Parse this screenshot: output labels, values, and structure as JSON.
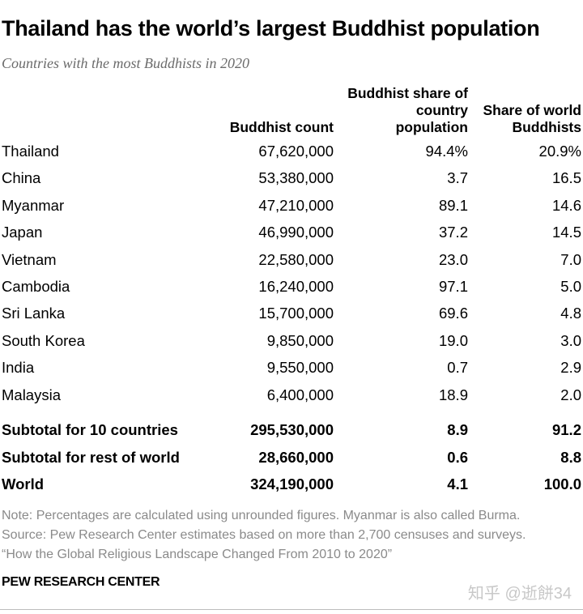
{
  "title": "Thailand has the world’s largest Buddhist population",
  "subtitle": "Countries with the most Buddhists in 2020",
  "chart_data": {
    "type": "table",
    "columns": {
      "country": "",
      "buddhist_count": "Buddhist count",
      "share_country_line1": "Buddhist share of",
      "share_country_line2": "country",
      "share_country_line3": "population",
      "share_world_line1": "Share of world",
      "share_world_line2": "Buddhists"
    },
    "rows": [
      {
        "country": "Thailand",
        "count": "67,620,000",
        "share_country": "94.4%",
        "share_world": "20.9%"
      },
      {
        "country": "China",
        "count": "53,380,000",
        "share_country": "3.7",
        "share_world": "16.5"
      },
      {
        "country": "Myanmar",
        "count": "47,210,000",
        "share_country": "89.1",
        "share_world": "14.6"
      },
      {
        "country": "Japan",
        "count": "46,990,000",
        "share_country": "37.2",
        "share_world": "14.5"
      },
      {
        "country": "Vietnam",
        "count": "22,580,000",
        "share_country": "23.0",
        "share_world": "7.0"
      },
      {
        "country": "Cambodia",
        "count": "16,240,000",
        "share_country": "97.1",
        "share_world": "5.0"
      },
      {
        "country": "Sri Lanka",
        "count": "15,700,000",
        "share_country": "69.6",
        "share_world": "4.8"
      },
      {
        "country": "South Korea",
        "count": "9,850,000",
        "share_country": "19.0",
        "share_world": "3.0"
      },
      {
        "country": "India",
        "count": "9,550,000",
        "share_country": "0.7",
        "share_world": "2.9"
      },
      {
        "country": "Malaysia",
        "count": "6,400,000",
        "share_country": "18.9",
        "share_world": "2.0"
      }
    ],
    "totals": [
      {
        "country": "Subtotal for 10 countries",
        "count": "295,530,000",
        "share_country": "8.9",
        "share_world": "91.2"
      },
      {
        "country": "Subtotal for rest of world",
        "count": "28,660,000",
        "share_country": "0.6",
        "share_world": "8.8"
      },
      {
        "country": "World",
        "count": "324,190,000",
        "share_country": "4.1",
        "share_world": "100.0"
      }
    ]
  },
  "notes": {
    "note": "Note: Percentages are calculated using unrounded figures. Myanmar is also called Burma.",
    "source": "Source: Pew Research Center estimates based on more than 2,700 censuses and surveys.",
    "report": "“How the Global Religious Landscape Changed From 2010 to 2020”"
  },
  "footer": {
    "org": "PEW RESEARCH CENTER",
    "watermark": "知乎 @逝餅34"
  }
}
